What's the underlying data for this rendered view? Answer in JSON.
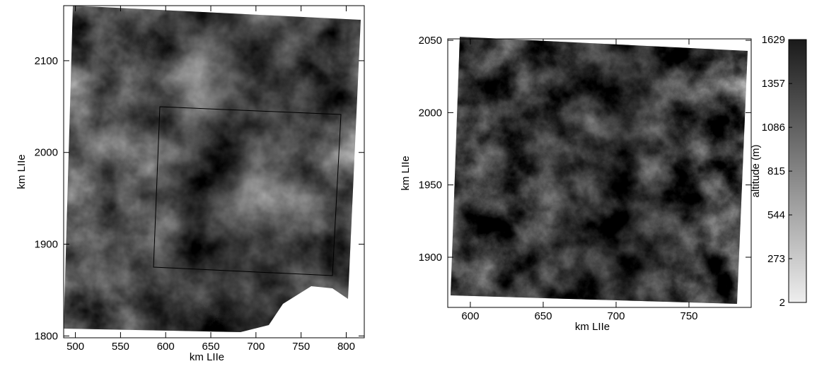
{
  "chart_data": [
    {
      "type": "raster",
      "xlabel": "km LIIe",
      "ylabel": "km LIIe",
      "xlim": [
        487,
        820
      ],
      "ylim": [
        1798,
        2160
      ],
      "xticks": [
        500,
        550,
        600,
        650,
        700,
        750,
        800
      ],
      "yticks": [
        1800,
        1900,
        2000,
        2100
      ]
    },
    {
      "type": "raster",
      "xlabel": "km LIIe",
      "ylabel": "km LIIe",
      "xlim": [
        584.5,
        792.7
      ],
      "ylim": [
        1865.3,
        2051
      ],
      "xticks": [
        600,
        650,
        700,
        750
      ],
      "yticks": [
        1900,
        1950,
        2000,
        2050
      ]
    },
    {
      "type": "colorbar",
      "ylabel": "altitude (m)",
      "ylim": [
        2,
        1629
      ],
      "yticks": [
        2,
        273,
        544,
        815,
        1086,
        1357,
        1629
      ]
    }
  ]
}
